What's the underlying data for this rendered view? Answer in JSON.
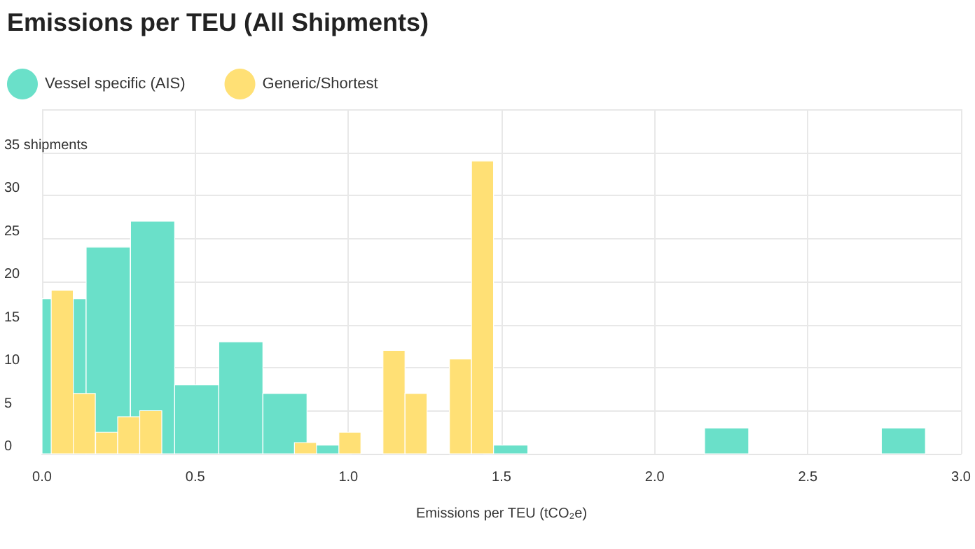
{
  "chart_data": {
    "type": "bar",
    "title": "Emissions per TEU (All Shipments)",
    "xlabel": "Emissions per TEU (tCO₂e)",
    "xlim": [
      0,
      3
    ],
    "xticks": [
      {
        "value": 0,
        "label": "0.0"
      },
      {
        "value": 0.5,
        "label": "0.5"
      },
      {
        "value": 1,
        "label": "1.0"
      },
      {
        "value": 1.5,
        "label": "1.5"
      },
      {
        "value": 2,
        "label": "2.0"
      },
      {
        "value": 2.5,
        "label": "2.5"
      },
      {
        "value": 3,
        "label": "3.0"
      }
    ],
    "ylim": [
      0,
      40
    ],
    "yticks": [
      0,
      5,
      10,
      15,
      20,
      25,
      30,
      {
        "value": 35,
        "label": "35 shipments"
      },
      {
        "value": 40,
        "label": null
      }
    ],
    "grid": true,
    "legend": "top left",
    "series": [
      {
        "name": "Vessel specific (AIS)",
        "color": "#6ae0c9",
        "x": [
          0.072,
          0.216,
          0.361,
          0.505,
          0.649,
          0.793,
          0.937,
          1.514,
          2.235,
          2.812
        ],
        "values": [
          18,
          24,
          27,
          8,
          13,
          7,
          1,
          1,
          3,
          3
        ]
      },
      {
        "name": "Generic/Shortest",
        "color": "#ffe075",
        "x": [
          0.066,
          0.138,
          0.211,
          0.283,
          0.355,
          0.86,
          1.005,
          1.149,
          1.221,
          1.366,
          1.438
        ],
        "values": [
          19,
          7,
          2.5,
          4.3,
          5,
          1.3,
          2.5,
          12,
          7,
          11,
          34
        ]
      }
    ]
  }
}
